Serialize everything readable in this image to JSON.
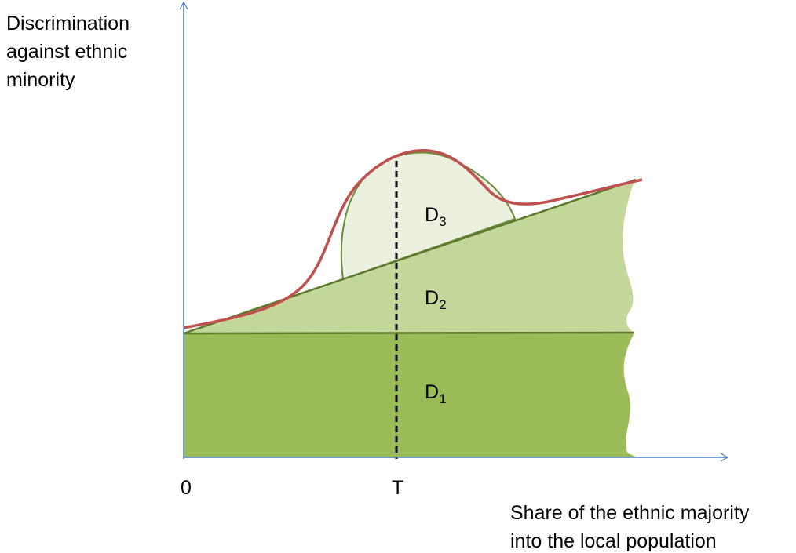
{
  "axes": {
    "y_label": [
      "Discrimination",
      "against ethnic",
      "minority"
    ],
    "x_label": [
      "Share of the ethnic majority",
      "into the local population"
    ],
    "origin": "0",
    "threshold": "T"
  },
  "regions": [
    {
      "label": "D",
      "subscript": "1"
    },
    {
      "label": "D",
      "subscript": "2"
    },
    {
      "label": "D",
      "subscript": "3"
    }
  ]
}
